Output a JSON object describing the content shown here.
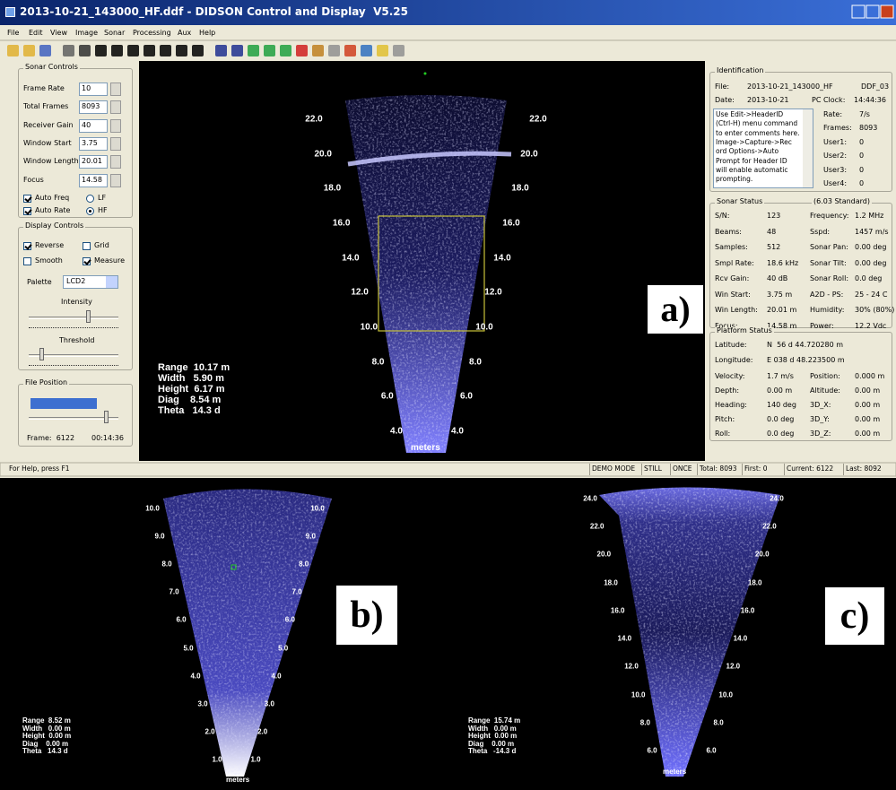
{
  "window": {
    "title": "2013-10-21_143000_HF.ddf - DIDSON Control and Display  V5.25",
    "menu": [
      "File",
      "Edit",
      "View",
      "Image",
      "Sonar",
      "Processing",
      "Aux",
      "Help"
    ]
  },
  "sonar_controls": {
    "title": "Sonar Controls",
    "fields": [
      {
        "label": "Frame Rate",
        "value": "10"
      },
      {
        "label": "Total Frames",
        "value": "8093"
      },
      {
        "label": "Receiver Gain",
        "value": "40"
      },
      {
        "label": "Window Start",
        "value": "3.75"
      },
      {
        "label": "Window Length",
        "value": "20.01"
      },
      {
        "label": "Focus",
        "value": "14.58"
      }
    ],
    "checks": [
      {
        "label": "Auto Freq",
        "checked": true,
        "kind": "box"
      },
      {
        "label": "LF",
        "checked": false,
        "kind": "radio"
      },
      {
        "label": "Auto Rate",
        "checked": true,
        "kind": "box"
      },
      {
        "label": "HF",
        "checked": true,
        "kind": "radio"
      }
    ]
  },
  "display_controls": {
    "title": "Display Controls",
    "checks": [
      {
        "label": "Reverse",
        "checked": true,
        "kind": "box"
      },
      {
        "label": "Grid",
        "checked": false,
        "kind": "box"
      },
      {
        "label": "Smooth",
        "checked": false,
        "kind": "box"
      },
      {
        "label": "Measure",
        "checked": true,
        "kind": "box"
      }
    ],
    "palette_label": "Palette",
    "palette": "LCD2",
    "intensity": "Intensity",
    "threshold": "Threshold"
  },
  "file_position": {
    "title": "File Position",
    "frame": "Frame:  6122",
    "time": "00:14:36"
  },
  "views": [
    {
      "label": "a)",
      "ticks": [
        "22.0",
        "20.0",
        "18.0",
        "16.0",
        "14.0",
        "12.0",
        "10.0",
        "8.0",
        "6.0",
        "4.0"
      ],
      "units": "meters",
      "measure": [
        "Range  10.17 m",
        "Width   5.90 m",
        "Height  6.17 m",
        "Diag    8.54 m",
        "Theta   14.3 d"
      ]
    },
    {
      "label": "b)",
      "ticks": [
        "10.0",
        "9.0",
        "8.0",
        "7.0",
        "6.0",
        "5.0",
        "4.0",
        "3.0",
        "2.0",
        "1.0"
      ],
      "units": "meters",
      "measure": [
        "Range  8.52 m",
        "Width   0.00 m",
        "Height  0.00 m",
        "Diag    0.00 m",
        "Theta   14.3 d"
      ]
    },
    {
      "label": "c)",
      "ticks": [
        "24.0",
        "22.0",
        "20.0",
        "18.0",
        "16.0",
        "14.0",
        "12.0",
        "10.0",
        "8.0",
        "6.0"
      ],
      "units": "meters",
      "measure": [
        "Range  15.74 m",
        "Width   0.00 m",
        "Height  0.00 m",
        "Diag    0.00 m",
        "Theta   -14.3 d"
      ]
    }
  ],
  "identification": {
    "title": "Identification",
    "file_label": "File:",
    "file": "2013-10-21_143000_HF",
    "file_type": "DDF_03",
    "date_label": "Date:",
    "date": "2013-10-21",
    "clock_label": "PC Clock:",
    "clock": "14:44:36",
    "note": [
      "Use Edit->HeaderID",
      "(Ctrl-H) menu command",
      "to enter comments here.",
      "Image->Capture->Rec",
      "ord Options->Auto",
      "Prompt for Header ID",
      "will enable automatic",
      "prompting."
    ],
    "info": [
      [
        "Rate:",
        "7/s"
      ],
      [
        "Frames:",
        "8093"
      ],
      [
        "User1:",
        "0"
      ],
      [
        "User2:",
        "0"
      ],
      [
        "User3:",
        "0"
      ],
      [
        "User4:",
        "0"
      ]
    ]
  },
  "sonar_status": {
    "title": "Sonar Status",
    "mode": "(6.03 Standard)",
    "rows": [
      [
        "S/N:",
        "123",
        "Frequency:",
        "1.2 MHz"
      ],
      [
        "Beams:",
        "48",
        "Sspd:",
        "1457 m/s"
      ],
      [
        "Samples:",
        "512",
        "Sonar Pan:",
        "0.00 deg"
      ],
      [
        "Smpl Rate:",
        "18.6 kHz",
        "Sonar Tilt:",
        "0.00 deg"
      ],
      [
        "Rcv Gain:",
        "40 dB",
        "Sonar Roll:",
        "0.0 deg"
      ],
      [
        "Win Start:",
        "3.75 m",
        "A2D - PS:",
        "25 - 24 C"
      ],
      [
        "Win Length:",
        "20.01 m",
        "Humidity:",
        "30% (80%)"
      ],
      [
        "Focus:",
        "14.58 m",
        "Power:",
        "12.2 Vdc"
      ]
    ]
  },
  "platform_status": {
    "title": "Platform Status",
    "position": [
      [
        "Latitude:",
        "N  56 d 44.720280 m"
      ],
      [
        "Longitude:",
        "E 038 d 48.223500 m"
      ]
    ],
    "rows": [
      [
        "Velocity:",
        "1.7 m/s",
        "Position:",
        "0.000 m"
      ],
      [
        "Depth:",
        "0.00 m",
        "Altitude:",
        "0.00 m"
      ],
      [
        "Heading:",
        "140 deg",
        "3D_X:",
        "0.00 m"
      ],
      [
        "Pitch:",
        "0.0 deg",
        "3D_Y:",
        "0.00 m"
      ],
      [
        "Roll:",
        "0.0 deg",
        "3D_Z:",
        "0.00 m"
      ]
    ]
  },
  "status_bar": [
    "For Help, press F1",
    "DEMO MODE",
    "STILL",
    "ONCE",
    "Total: 8093",
    "First: 0",
    "Current: 6122",
    "Last: 8092"
  ]
}
